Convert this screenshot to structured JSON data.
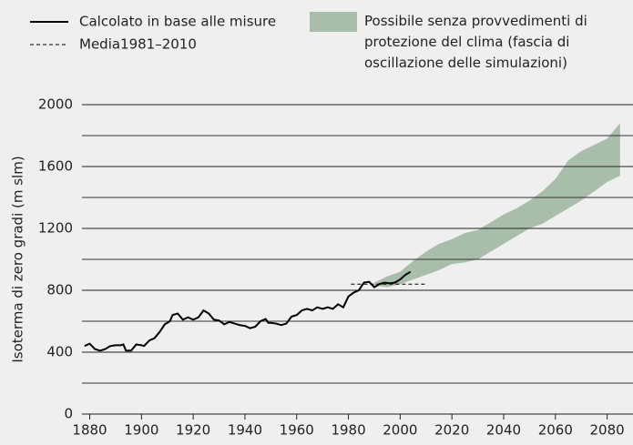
{
  "chart_data": {
    "type": "line",
    "ylabel": "Isoterma di zero gradi (m slm)",
    "xlim": [
      1877,
      2090
    ],
    "xticks": [
      1880,
      1900,
      1920,
      1940,
      1960,
      1980,
      2000,
      2020,
      2040,
      2060,
      2080
    ],
    "ylim": [
      0,
      2000
    ],
    "yticks": [
      0,
      400,
      800,
      1200,
      1600,
      2000
    ],
    "minor_yticks": [
      200,
      600,
      1000,
      1400,
      1800
    ],
    "grid": true,
    "series": [
      {
        "name": "Calcolato in base alle misure",
        "color": "#000000",
        "style": "solid",
        "x": [
          1878,
          1880,
          1882,
          1884,
          1886,
          1888,
          1890,
          1892,
          1893,
          1894,
          1896,
          1898,
          1900,
          1901,
          1903,
          1905,
          1907,
          1909,
          1911,
          1912,
          1914,
          1916,
          1918,
          1920,
          1922,
          1924,
          1926,
          1928,
          1930,
          1932,
          1934,
          1936,
          1938,
          1940,
          1942,
          1944,
          1946,
          1948,
          1949,
          1950,
          1952,
          1954,
          1956,
          1958,
          1960,
          1962,
          1964,
          1966,
          1968,
          1970,
          1972,
          1974,
          1976,
          1978,
          1980,
          1982,
          1984,
          1986,
          1988,
          1990,
          1992,
          1994,
          1996,
          1998,
          2000,
          2002,
          2004
        ],
        "values": [
          440,
          455,
          420,
          410,
          420,
          440,
          445,
          445,
          450,
          410,
          410,
          450,
          445,
          440,
          475,
          490,
          530,
          580,
          600,
          640,
          650,
          610,
          625,
          610,
          625,
          670,
          650,
          610,
          605,
          580,
          595,
          585,
          575,
          570,
          555,
          565,
          600,
          615,
          590,
          590,
          585,
          575,
          585,
          630,
          640,
          670,
          680,
          670,
          690,
          680,
          690,
          680,
          710,
          690,
          760,
          785,
          800,
          850,
          855,
          820,
          840,
          850,
          845,
          850,
          870,
          900,
          920
        ]
      },
      {
        "name": "Media1981–2010",
        "color": "#000000",
        "style": "dashed",
        "x": [
          1981,
          2010
        ],
        "values": [
          840,
          840
        ]
      }
    ],
    "band": {
      "name": "Possibile senza provvedimenti di protezione del clima (fascia di oscillazione delle simulazioni)",
      "color": "#a9bdab",
      "x": [
        1990,
        1995,
        2000,
        2005,
        2010,
        2015,
        2020,
        2025,
        2030,
        2035,
        2040,
        2045,
        2050,
        2055,
        2060,
        2065,
        2070,
        2075,
        2080,
        2085
      ],
      "lower": [
        830,
        820,
        840,
        870,
        900,
        930,
        970,
        980,
        1000,
        1050,
        1100,
        1150,
        1200,
        1230,
        1280,
        1330,
        1380,
        1440,
        1500,
        1540
      ],
      "upper": [
        850,
        890,
        920,
        990,
        1050,
        1100,
        1130,
        1170,
        1190,
        1240,
        1290,
        1330,
        1380,
        1440,
        1520,
        1640,
        1700,
        1740,
        1780,
        1880
      ]
    }
  }
}
